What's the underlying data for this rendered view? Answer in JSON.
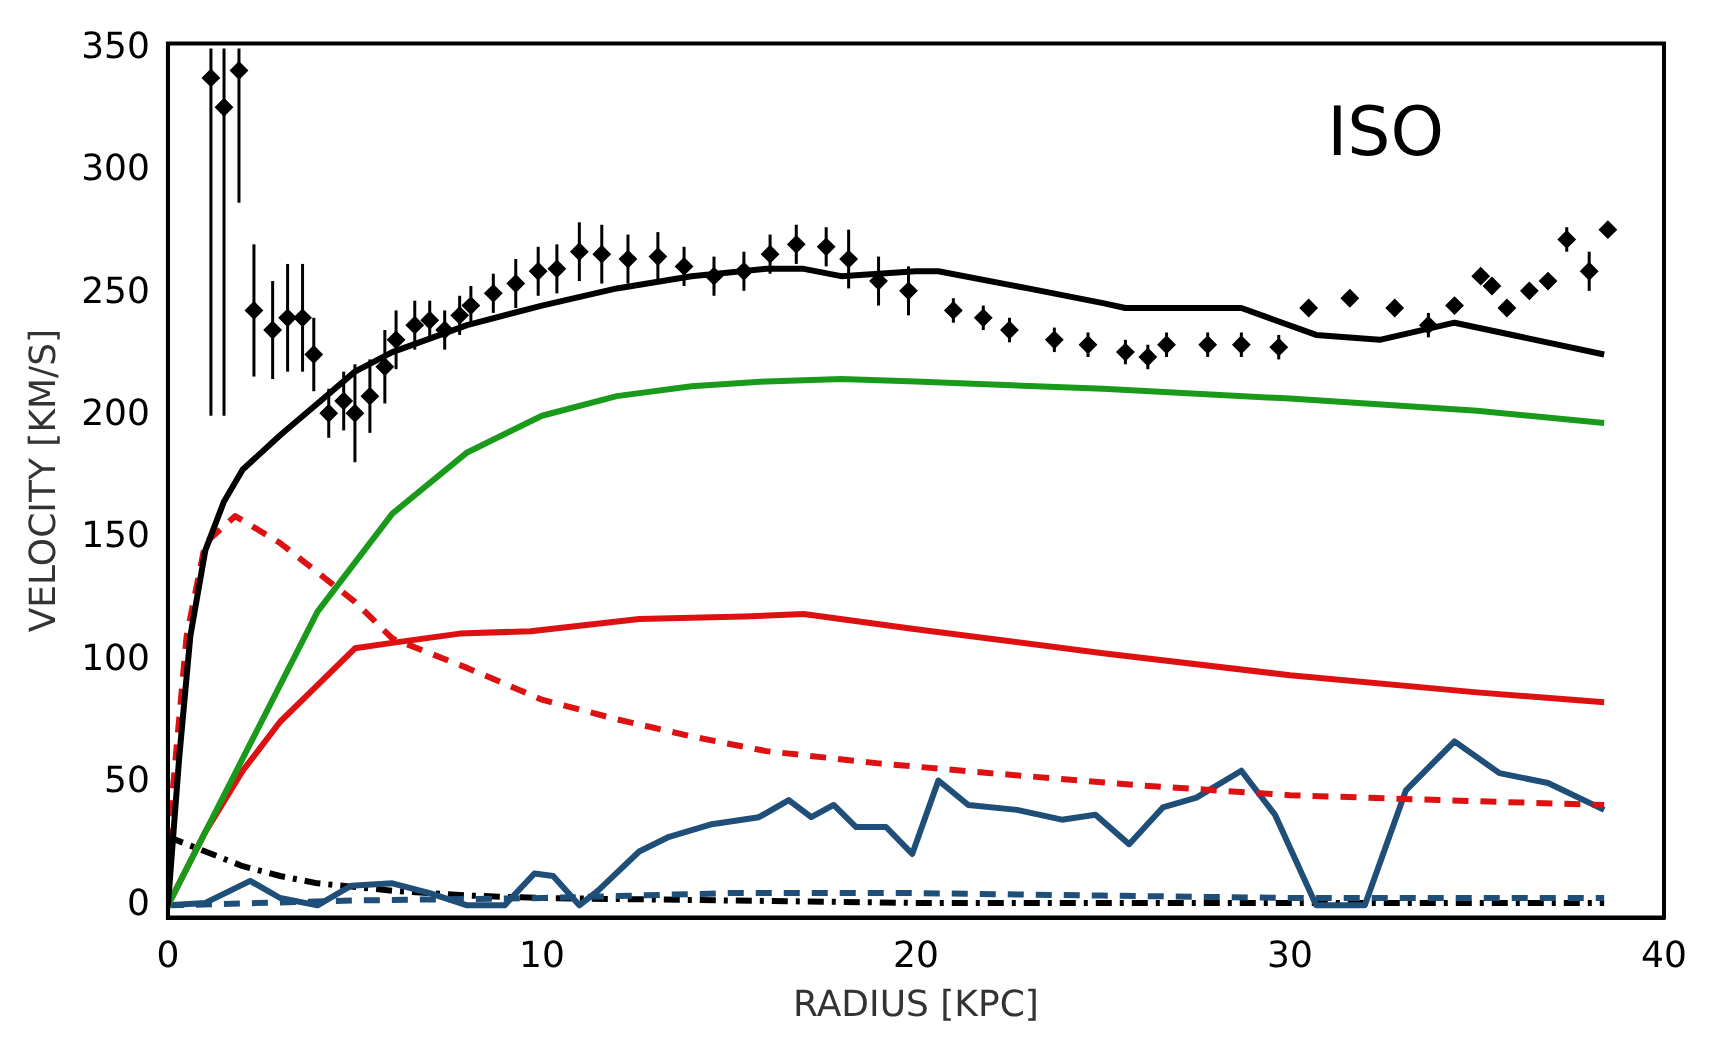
{
  "chart_data": {
    "type": "line",
    "xlabel": "RADIUS [KPC]",
    "ylabel": "VELOCITY [KM/S]",
    "annotations": [
      "ISO"
    ],
    "xlim": [
      0,
      40
    ],
    "xticks": [
      0,
      10,
      20,
      30,
      40
    ],
    "ylim": [
      -5,
      352
    ],
    "yticks": [
      0,
      50,
      100,
      150,
      200,
      250,
      300,
      350
    ],
    "grid": false,
    "legend": false,
    "series": [
      {
        "type": "scatter",
        "marker": "diamond",
        "color": "#000000",
        "x": [
          1.15,
          1.5,
          1.9,
          2.3,
          2.8,
          3.2,
          3.6,
          3.9,
          4.3,
          4.7,
          5.0,
          5.4,
          5.8,
          6.1,
          6.6,
          7.0,
          7.4,
          7.8,
          8.1,
          8.7,
          9.3,
          9.9,
          10.4,
          11.0,
          11.6,
          12.3,
          13.1,
          13.8,
          14.6,
          15.4,
          16.1,
          16.8,
          17.6,
          18.2,
          19.0,
          19.8,
          21.0,
          21.8,
          22.5,
          23.7,
          24.6,
          25.6,
          26.2,
          26.7,
          27.8,
          28.7,
          29.7,
          30.5,
          31.6,
          32.8,
          33.7,
          34.4,
          35.1,
          35.4,
          35.8,
          36.4,
          36.9,
          37.4,
          38.0,
          38.5
        ],
        "values": [
          338,
          326,
          341,
          243,
          235,
          240,
          240,
          225,
          201,
          206,
          201,
          208,
          220,
          231,
          237,
          239,
          235,
          241,
          245,
          250,
          254,
          259,
          260,
          267,
          266,
          264,
          265,
          261,
          257,
          259,
          266,
          270,
          269,
          264,
          255,
          251,
          243,
          240,
          235,
          231,
          229,
          226,
          224,
          229,
          229,
          229,
          228,
          244,
          248,
          244,
          237,
          245,
          257,
          253,
          244,
          251,
          255,
          272,
          259,
          276
        ],
        "errors": [
          [
            200,
            350
          ],
          [
            200,
            350
          ],
          [
            287,
            350
          ],
          27,
          20,
          22,
          22,
          15,
          10,
          12,
          20,
          15,
          15,
          12,
          10,
          8,
          8,
          8,
          8,
          8,
          10,
          10,
          10,
          12,
          12,
          10,
          10,
          8,
          8,
          8,
          8,
          8,
          8,
          12,
          10,
          10,
          5,
          5,
          5,
          5,
          5,
          5,
          5,
          5,
          5,
          5,
          5,
          3,
          3,
          3,
          5,
          3,
          3,
          3,
          3,
          3,
          3,
          5,
          8,
          3
        ]
      },
      {
        "type": "line",
        "line_style": "solid",
        "color": "#000000",
        "x": [
          0,
          0.3,
          0.6,
          1,
          1.5,
          2,
          3,
          4,
          5,
          6,
          8,
          10,
          12,
          14,
          16,
          17,
          18,
          19,
          20,
          20.6,
          23,
          25,
          25.6,
          28.7,
          30.7,
          32.4,
          34.4,
          38.4
        ],
        "values": [
          0,
          60,
          110,
          145,
          165,
          178,
          192,
          205,
          218,
          226,
          237,
          245,
          252,
          257,
          260,
          260,
          257,
          258,
          259,
          259,
          252,
          246,
          244,
          244,
          233,
          231,
          238,
          225
        ]
      },
      {
        "type": "line",
        "line_style": "solid",
        "color": "#1a9a1a",
        "x": [
          0,
          2,
          4,
          6,
          8,
          10,
          12,
          14,
          16,
          18,
          20,
          25,
          30,
          35,
          38.4
        ],
        "values": [
          0,
          60,
          120,
          160,
          185,
          200,
          208,
          212,
          214,
          215,
          214,
          211,
          207,
          202,
          197
        ]
      },
      {
        "type": "line",
        "line_style": "solid",
        "color": "#dd1111",
        "x": [
          0,
          1,
          2,
          3,
          4,
          5,
          5.9,
          7.8,
          9.7,
          12.6,
          15.4,
          17,
          19.9,
          25,
          30,
          35,
          38.4
        ],
        "values": [
          0,
          30,
          55,
          75,
          90,
          105,
          107,
          111,
          112,
          117,
          118,
          119,
          113,
          103,
          94,
          87,
          83
        ]
      },
      {
        "type": "line",
        "line_style": "dashed",
        "color": "#dd1111",
        "x": [
          0,
          0.5,
          1,
          1.8,
          3,
          4,
          5,
          6,
          8,
          10,
          12,
          14,
          16,
          19,
          22,
          26,
          30,
          34,
          38.4
        ],
        "values": [
          25,
          110,
          148,
          159,
          148,
          136,
          124,
          109,
          97,
          84,
          76,
          69,
          63,
          58,
          54,
          49,
          45,
          43,
          41
        ]
      },
      {
        "type": "line",
        "line_style": "solid",
        "color": "#1f4e79",
        "x": [
          0,
          1,
          2.2,
          3,
          4,
          4.9,
          6,
          7,
          8,
          9,
          9.8,
          10.3,
          11,
          11.5,
          12.6,
          13.4,
          14.5,
          15.8,
          16.6,
          17.2,
          17.8,
          18.4,
          19.2,
          19.9,
          20.6,
          21.4,
          22.7,
          23.9,
          24.8,
          25.7,
          26.6,
          27.5,
          28.7,
          29.6,
          30.7,
          32.0,
          33.1,
          34.4,
          35.6,
          36.9,
          38.4
        ],
        "values": [
          0,
          1,
          10,
          3,
          0,
          8,
          9,
          5,
          0,
          0,
          13,
          12,
          0,
          6,
          22,
          28,
          33,
          36,
          43,
          36,
          41,
          32,
          32,
          21,
          51,
          41,
          39,
          35,
          37,
          25,
          40,
          44,
          55,
          37,
          0,
          0,
          47,
          67,
          54,
          50,
          39
        ]
      },
      {
        "type": "line",
        "line_style": "dashed",
        "color": "#1f4e79",
        "x": [
          0,
          5,
          10,
          15,
          20,
          25,
          30,
          35,
          38.4
        ],
        "values": [
          0,
          2,
          3,
          5,
          5,
          4,
          3,
          3,
          3
        ]
      },
      {
        "type": "line",
        "line_style": "dashdot",
        "color": "#000000",
        "x": [
          0,
          1,
          2,
          3,
          4,
          6,
          8,
          10,
          15,
          20,
          30,
          38.4
        ],
        "values": [
          28,
          22,
          16,
          12,
          9,
          6,
          4,
          3,
          2,
          1,
          1,
          1
        ]
      }
    ]
  }
}
